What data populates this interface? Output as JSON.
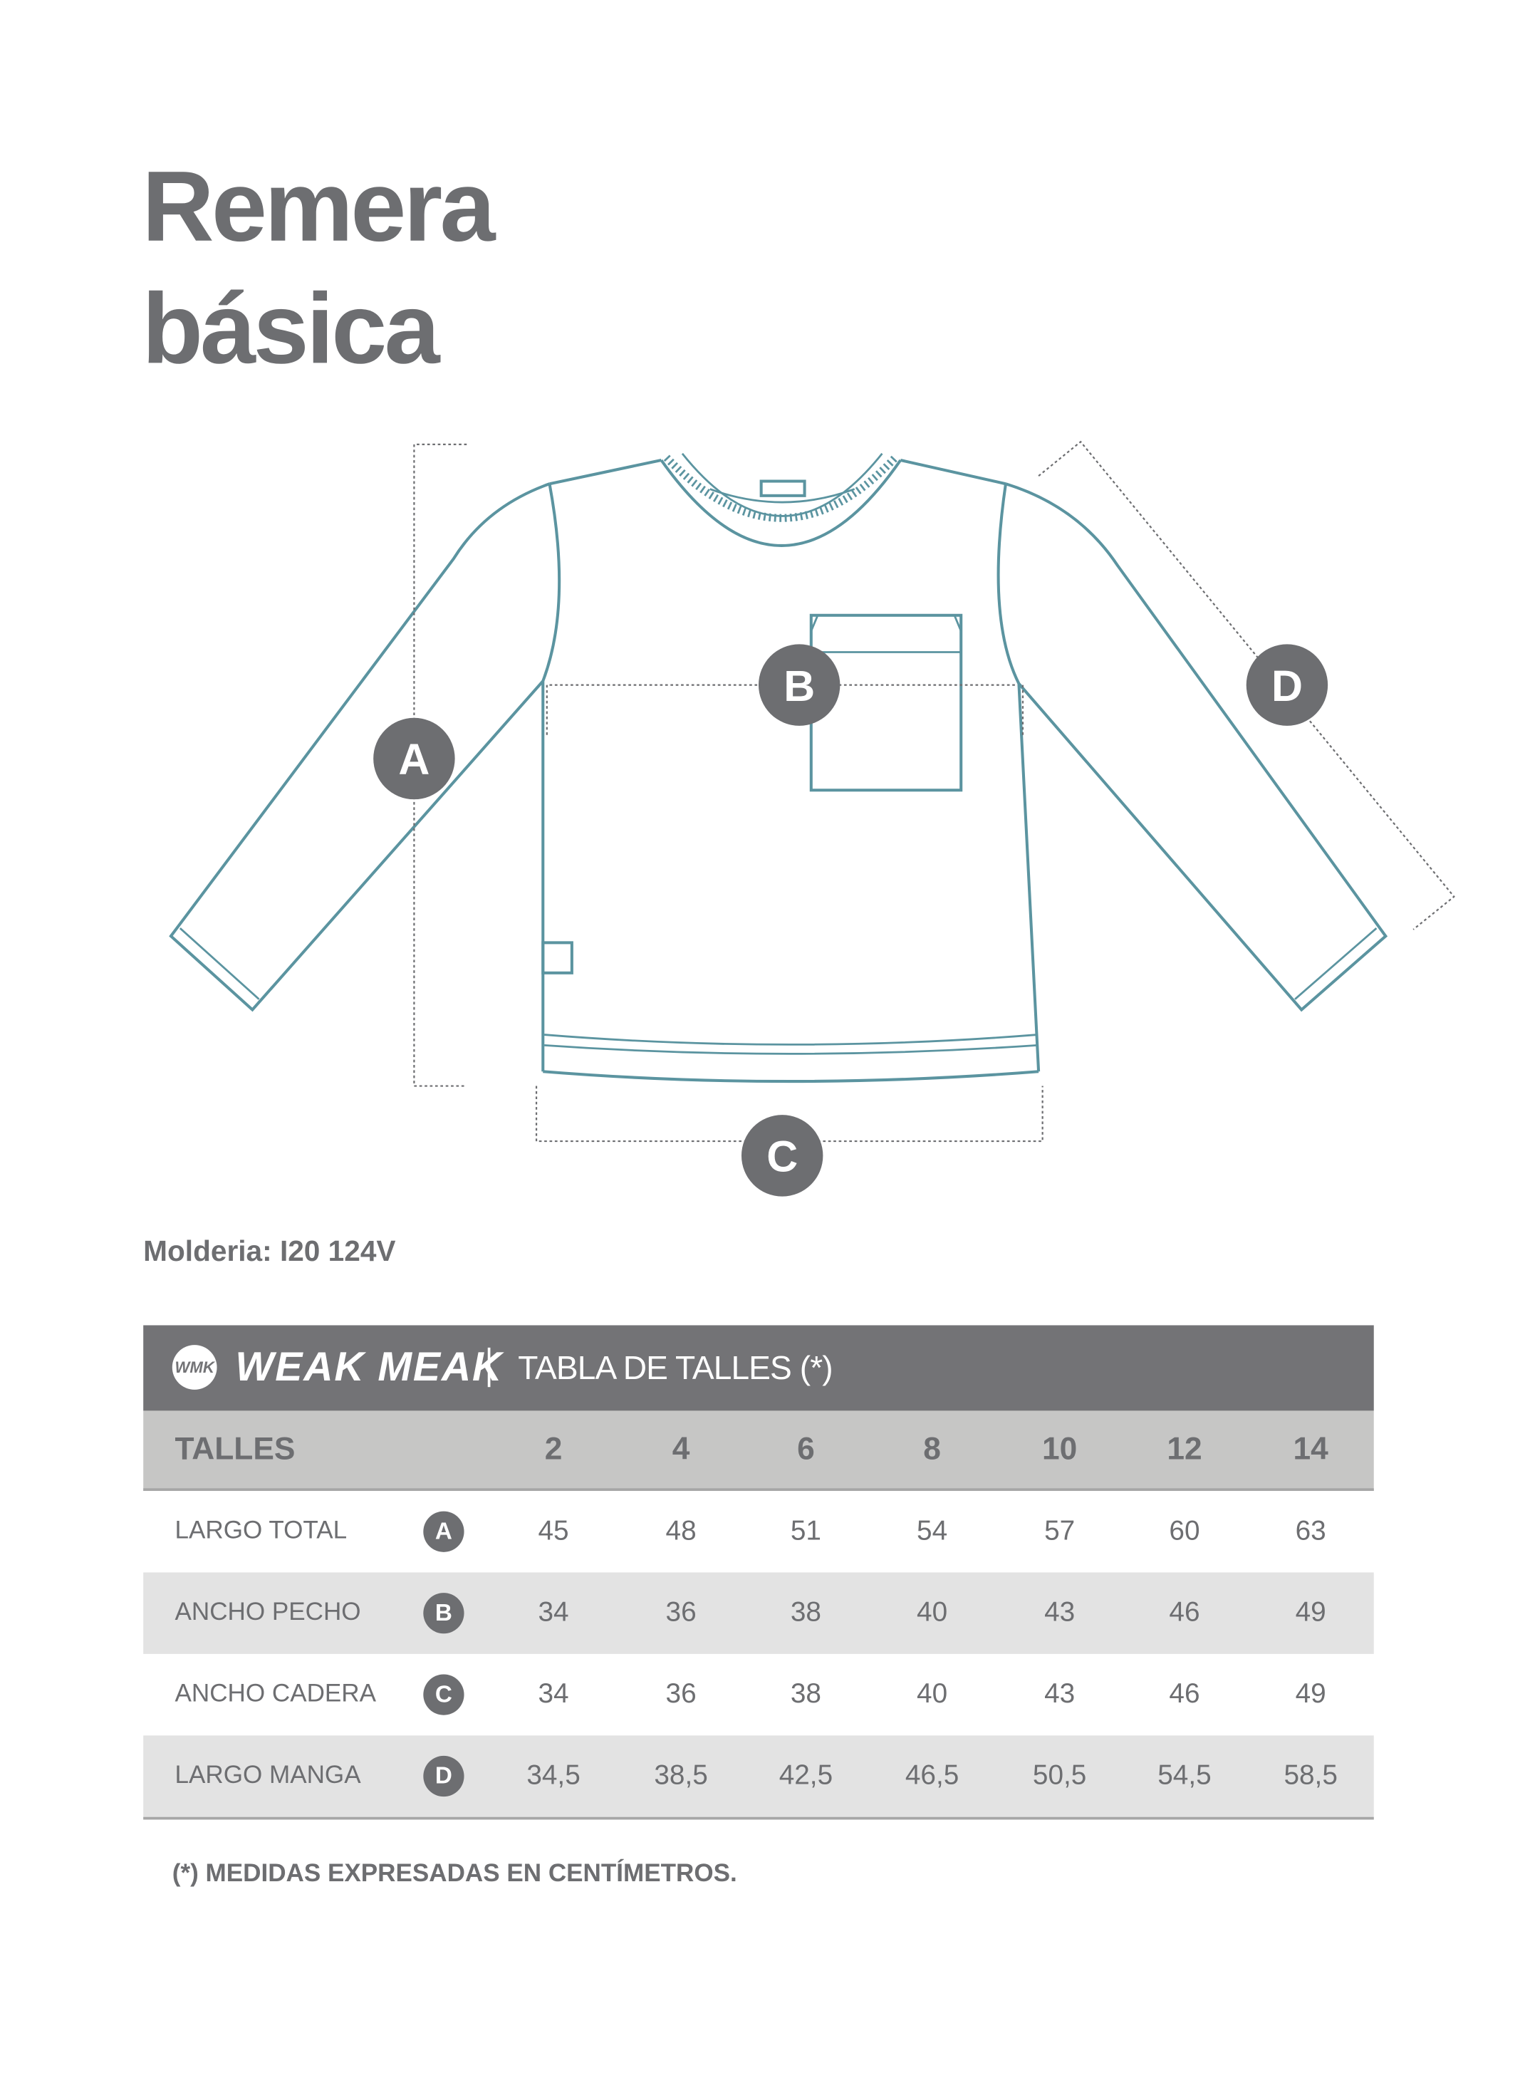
{
  "title": {
    "line1": "Remera",
    "line2": "básica"
  },
  "diagram": {
    "stroke_color": "#5b94a0",
    "markers": [
      "A",
      "B",
      "C",
      "D"
    ]
  },
  "molderia": "Molderia: I20 124V",
  "table": {
    "brand": {
      "mark": "WMK",
      "name": "WEAK MEAK"
    },
    "title": "TABLA DE TALLES (*)",
    "header_label": "TALLES",
    "sizes": [
      "2",
      "4",
      "6",
      "8",
      "10",
      "12",
      "14"
    ],
    "rows": [
      {
        "label": "LARGO TOTAL",
        "marker": "A",
        "values": [
          "45",
          "48",
          "51",
          "54",
          "57",
          "60",
          "63"
        ]
      },
      {
        "label": "ANCHO PECHO",
        "marker": "B",
        "values": [
          "34",
          "36",
          "38",
          "40",
          "43",
          "46",
          "49"
        ]
      },
      {
        "label": "ANCHO CADERA",
        "marker": "C",
        "values": [
          "34",
          "36",
          "38",
          "40",
          "43",
          "46",
          "49"
        ]
      },
      {
        "label": "LARGO MANGA",
        "marker": "D",
        "values": [
          "34,5",
          "38,5",
          "42,5",
          "46,5",
          "50,5",
          "54,5",
          "58,5"
        ]
      }
    ],
    "colors": {
      "header": "#737376",
      "sizes_row": "#c6c6c5",
      "alt_row": "#e3e3e3",
      "text": "#6d6e71"
    }
  },
  "note": "(*) MEDIDAS EXPRESADAS EN CENTÍMETROS."
}
